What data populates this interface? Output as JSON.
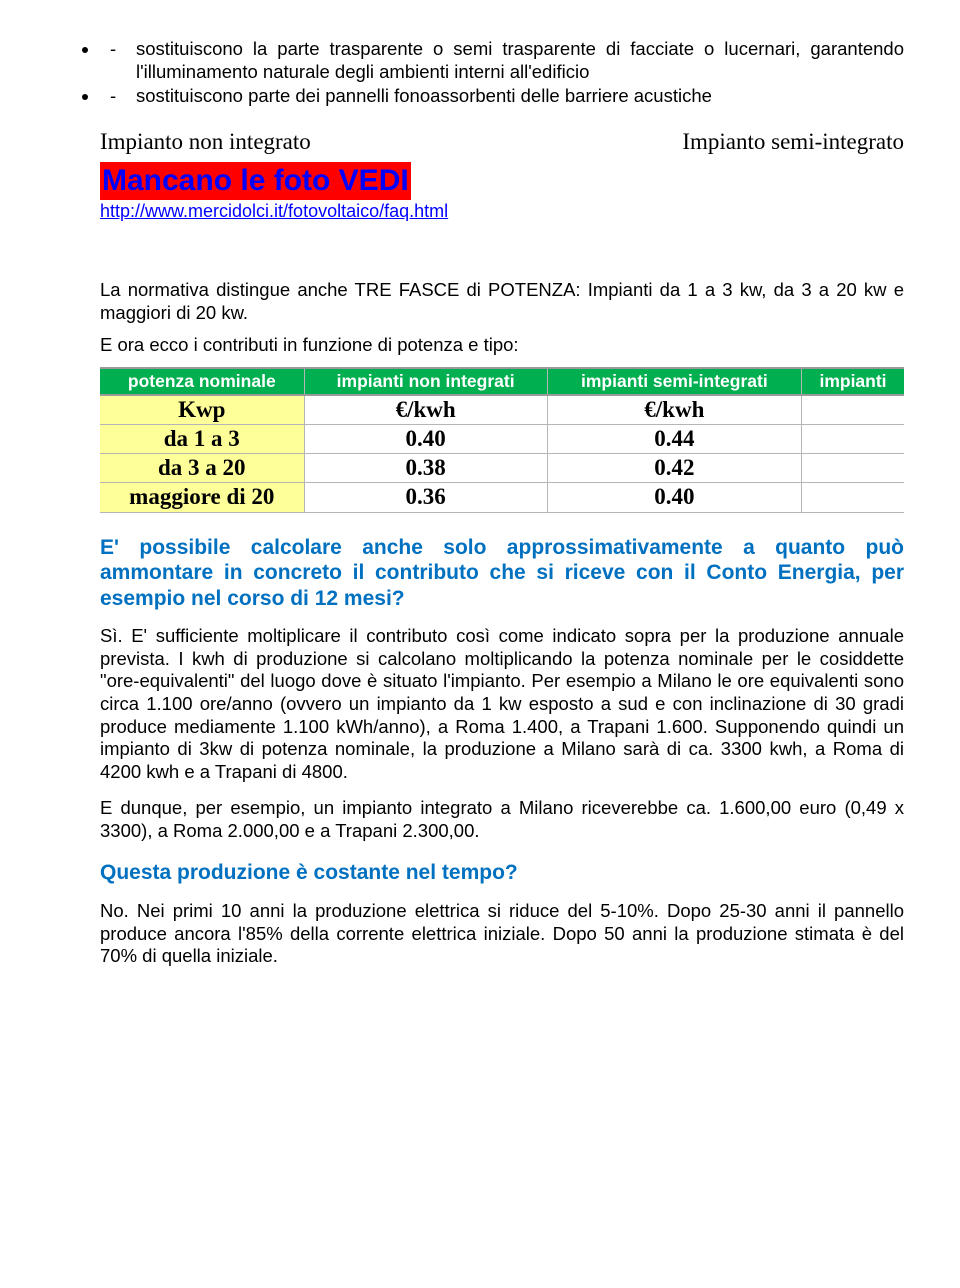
{
  "bullets": [
    "sostituiscono la parte trasparente o semi trasparente di facciate o lucernari, garantendo l'illuminamento naturale degli ambienti interni all'edificio",
    "sostituiscono parte dei pannelli fonoassorbenti delle barriere acustiche"
  ],
  "twoCol": {
    "left": "Impianto non integrato",
    "right": "Impianto semi-integrato"
  },
  "highlight": "Mancano le foto VEDI",
  "link": "http://www.mercidolci.it/fotovoltaico/faq.html",
  "normativa": "La normativa distingue anche TRE FASCE di POTENZA: Impianti da 1 a 3 kw, da 3 a 20 kw e maggiori di 20 kw.",
  "contributi_intro": "E ora ecco i contributi in funzione di potenza e tipo:",
  "table": {
    "headers": [
      "potenza nominale",
      "impianti non integrati",
      "impianti semi-integrati",
      "impianti"
    ],
    "rows": [
      [
        "Kwp",
        "€/kwh",
        "€/kwh",
        ""
      ],
      [
        "da 1 a 3",
        "0.40",
        "0.44",
        ""
      ],
      [
        "da 3 a 20",
        "0.38",
        "0.42",
        ""
      ],
      [
        "maggiore di 20",
        "0.36",
        "0.40",
        ""
      ]
    ],
    "header_bg": "#00b050",
    "col1_bg": "#ffff99"
  },
  "q1": "E' possibile calcolare anche solo approssimativamente a quanto può ammontare in concreto il contributo che si riceve con il Conto Energia, per esempio nel corso di 12 mesi?",
  "answer1_p1": "Sì. E' sufficiente moltiplicare il contributo così come indicato sopra per la produzione annuale prevista. I kwh di produzione si calcolano moltiplicando la potenza nominale per le cosiddette \"ore-equivalenti\" del luogo dove è situato l'impianto. Per esempio a Milano le ore equivalenti sono circa 1.100 ore/anno (ovvero un impianto da 1 kw esposto a sud e con inclinazione di 30 gradi produce mediamente 1.100 kWh/anno), a Roma 1.400, a Trapani 1.600. Supponendo quindi un impianto di 3kw di potenza nominale, la produzione a Milano sarà di ca. 3300 kwh, a Roma di 4200 kwh e a Trapani di 4800.",
  "answer1_p2": "E dunque, per esempio, un impianto integrato a Milano riceverebbe ca. 1.600,00 euro (0,49 x 3300), a Roma 2.000,00 e a Trapani 2.300,00.",
  "q2": "Questa produzione è costante nel tempo?",
  "answer2": "No. Nei primi 10 anni la produzione elettrica si riduce del 5-10%. Dopo 25-30 anni il pannello produce ancora l'85% della corrente elettrica iniziale. Dopo 50 anni la produzione stimata è del 70% di quella iniziale."
}
